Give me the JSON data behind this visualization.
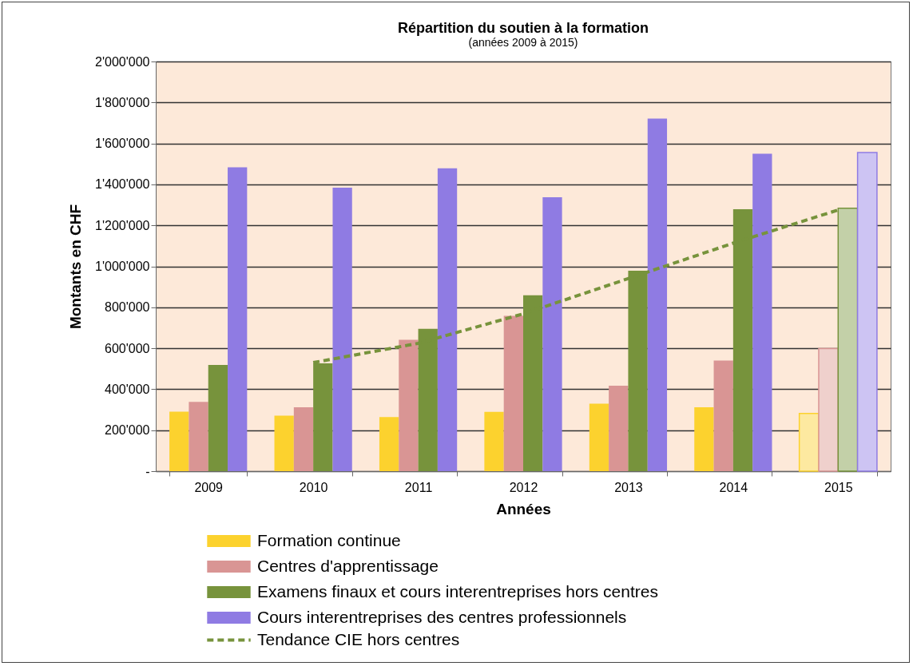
{
  "chart_data": {
    "type": "bar",
    "title": "Répartition du soutien à la formation",
    "subtitle": "(années 2009 à 2015)",
    "xlabel": "Années",
    "ylabel": "Montants en CHF",
    "categories": [
      "2009",
      "2010",
      "2011",
      "2012",
      "2013",
      "2014",
      "2015"
    ],
    "series": [
      {
        "name": "Formation continue",
        "color": "#fcd22e",
        "colors": [
          "#fcd22e",
          "#fcd22e",
          "#fcd22e",
          "#fcd22e",
          "#fcd22e",
          "#fcd22e",
          "#fde9a0"
        ],
        "values": [
          290000,
          271000,
          264000,
          289000,
          329000,
          312000,
          282000
        ]
      },
      {
        "name": "Centres d'apprentissage",
        "color": "#d99594",
        "colors": [
          "#d99594",
          "#d99594",
          "#d99594",
          "#d99594",
          "#d99594",
          "#d99594",
          "#efd0cc"
        ],
        "values": [
          338000,
          312000,
          641000,
          758000,
          417000,
          540000,
          598000
        ]
      },
      {
        "name": " Examens finaux et cours interentreprises hors centres",
        "color": "#77933c",
        "colors": [
          "#77933c",
          "#77933c",
          "#77933c",
          "#77933c",
          "#77933c",
          "#77933c",
          "#c3d0a8"
        ],
        "values": [
          519000,
          526000,
          695000,
          859000,
          979000,
          1279000,
          1284000
        ]
      },
      {
        "name": "Cours interentreprises des centres professionnels",
        "color": "#8f7be3",
        "colors": [
          "#8f7be3",
          "#8f7be3",
          "#8f7be3",
          "#8f7be3",
          "#8f7be3",
          "#8f7be3",
          "#cdc4f3"
        ],
        "values": [
          1483000,
          1384000,
          1479000,
          1337000,
          1721000,
          1550000,
          1556000
        ]
      },
      {
        "name": "Tendance CIE hors centres",
        "type": "line",
        "line_style": "dashed",
        "color": "#77933c",
        "values": [
          null,
          530000,
          624000,
          768000,
          940000,
          1113000,
          1275000
        ]
      }
    ],
    "ylim": [
      0,
      2000000
    ],
    "yticks": [
      {
        "value": 0,
        "label": "-"
      },
      {
        "value": 200000,
        "label": "200'000"
      },
      {
        "value": 400000,
        "label": "400'000"
      },
      {
        "value": 600000,
        "label": "600'000"
      },
      {
        "value": 800000,
        "label": "800'000"
      },
      {
        "value": 1000000,
        "label": "1'000'000"
      },
      {
        "value": 1200000,
        "label": "1'200'000"
      },
      {
        "value": 1400000,
        "label": "1'400'000"
      },
      {
        "value": 1600000,
        "label": "1'600'000"
      },
      {
        "value": 1800000,
        "label": "1'800'000"
      },
      {
        "value": 2000000,
        "label": "2'000'000"
      }
    ],
    "grid": "y",
    "legend": "bottom"
  }
}
